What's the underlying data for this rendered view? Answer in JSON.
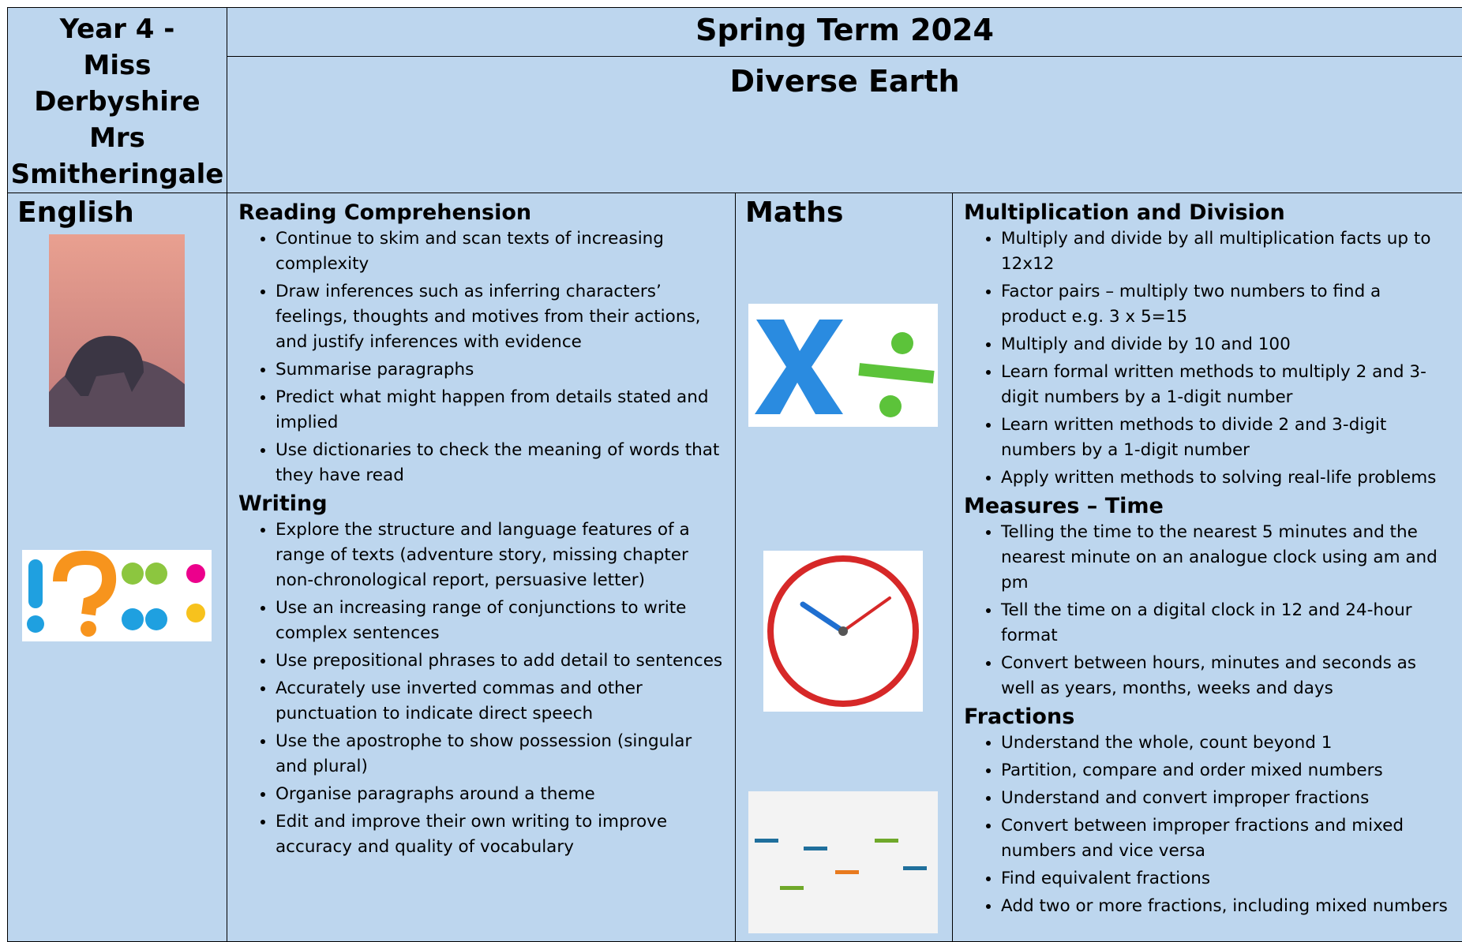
{
  "header": {
    "class_lines": [
      "Year 4 -",
      "Miss",
      "Derbyshire",
      "Mrs",
      "Smitheringale"
    ],
    "term": "Spring Term 2024",
    "topic": "Diverse Earth"
  },
  "english": {
    "label": "English",
    "sections": [
      {
        "heading": "Reading Comprehension",
        "items": [
          "Continue to skim and scan texts of increasing complexity",
          "Draw inferences such as inferring characters’ feelings, thoughts and motives from their actions, and justify inferences with evidence",
          "Summarise paragraphs",
          "Predict what might happen from details stated and implied",
          "Use dictionaries to check the meaning of words that they have read"
        ]
      },
      {
        "heading": "Writing",
        "items": [
          "Explore the structure and language features of a range of texts (adventure story, missing chapter non-chronological report, persuasive letter)",
          "Use an increasing range of conjunctions to write complex sentences",
          "Use prepositional phrases to add detail to sentences",
          "Accurately use inverted commas and other punctuation to indicate direct speech",
          "Use the apostrophe to show possession (singular and plural)",
          "Organise paragraphs around a theme",
          "Edit and improve their own writing to improve accuracy and quality of vocabulary"
        ]
      }
    ]
  },
  "maths": {
    "label": "Maths",
    "sections": [
      {
        "heading": "Multiplication and Division",
        "items": [
          "Multiply and divide by all multiplication facts up to 12x12",
          "Factor pairs – multiply two numbers to find a product e.g. 3 x 5=15",
          "Multiply and divide by 10 and 100",
          "Learn formal written methods to multiply 2 and 3-digit numbers by a 1-digit number",
          "Learn written methods to divide 2 and 3-digit numbers by a 1-digit number",
          "Apply written methods to solving real-life problems"
        ]
      },
      {
        "heading": "Measures – Time",
        "items": [
          "Telling the time to the nearest 5 minutes and the nearest minute on an analogue clock using am and pm",
          "Tell the time on a digital clock in 12 and 24-hour format",
          "Convert between hours, minutes and seconds as well as years, months, weeks and days"
        ]
      },
      {
        "heading": "Fractions",
        "items": [
          "Understand the whole, count beyond 1",
          "Partition, compare and order mixed numbers",
          "Understand and convert improper fractions",
          "Convert between improper fractions and mixed numbers and vice versa",
          "Find equivalent fractions",
          "Add two or more fractions, including mixed numbers"
        ]
      }
    ]
  }
}
